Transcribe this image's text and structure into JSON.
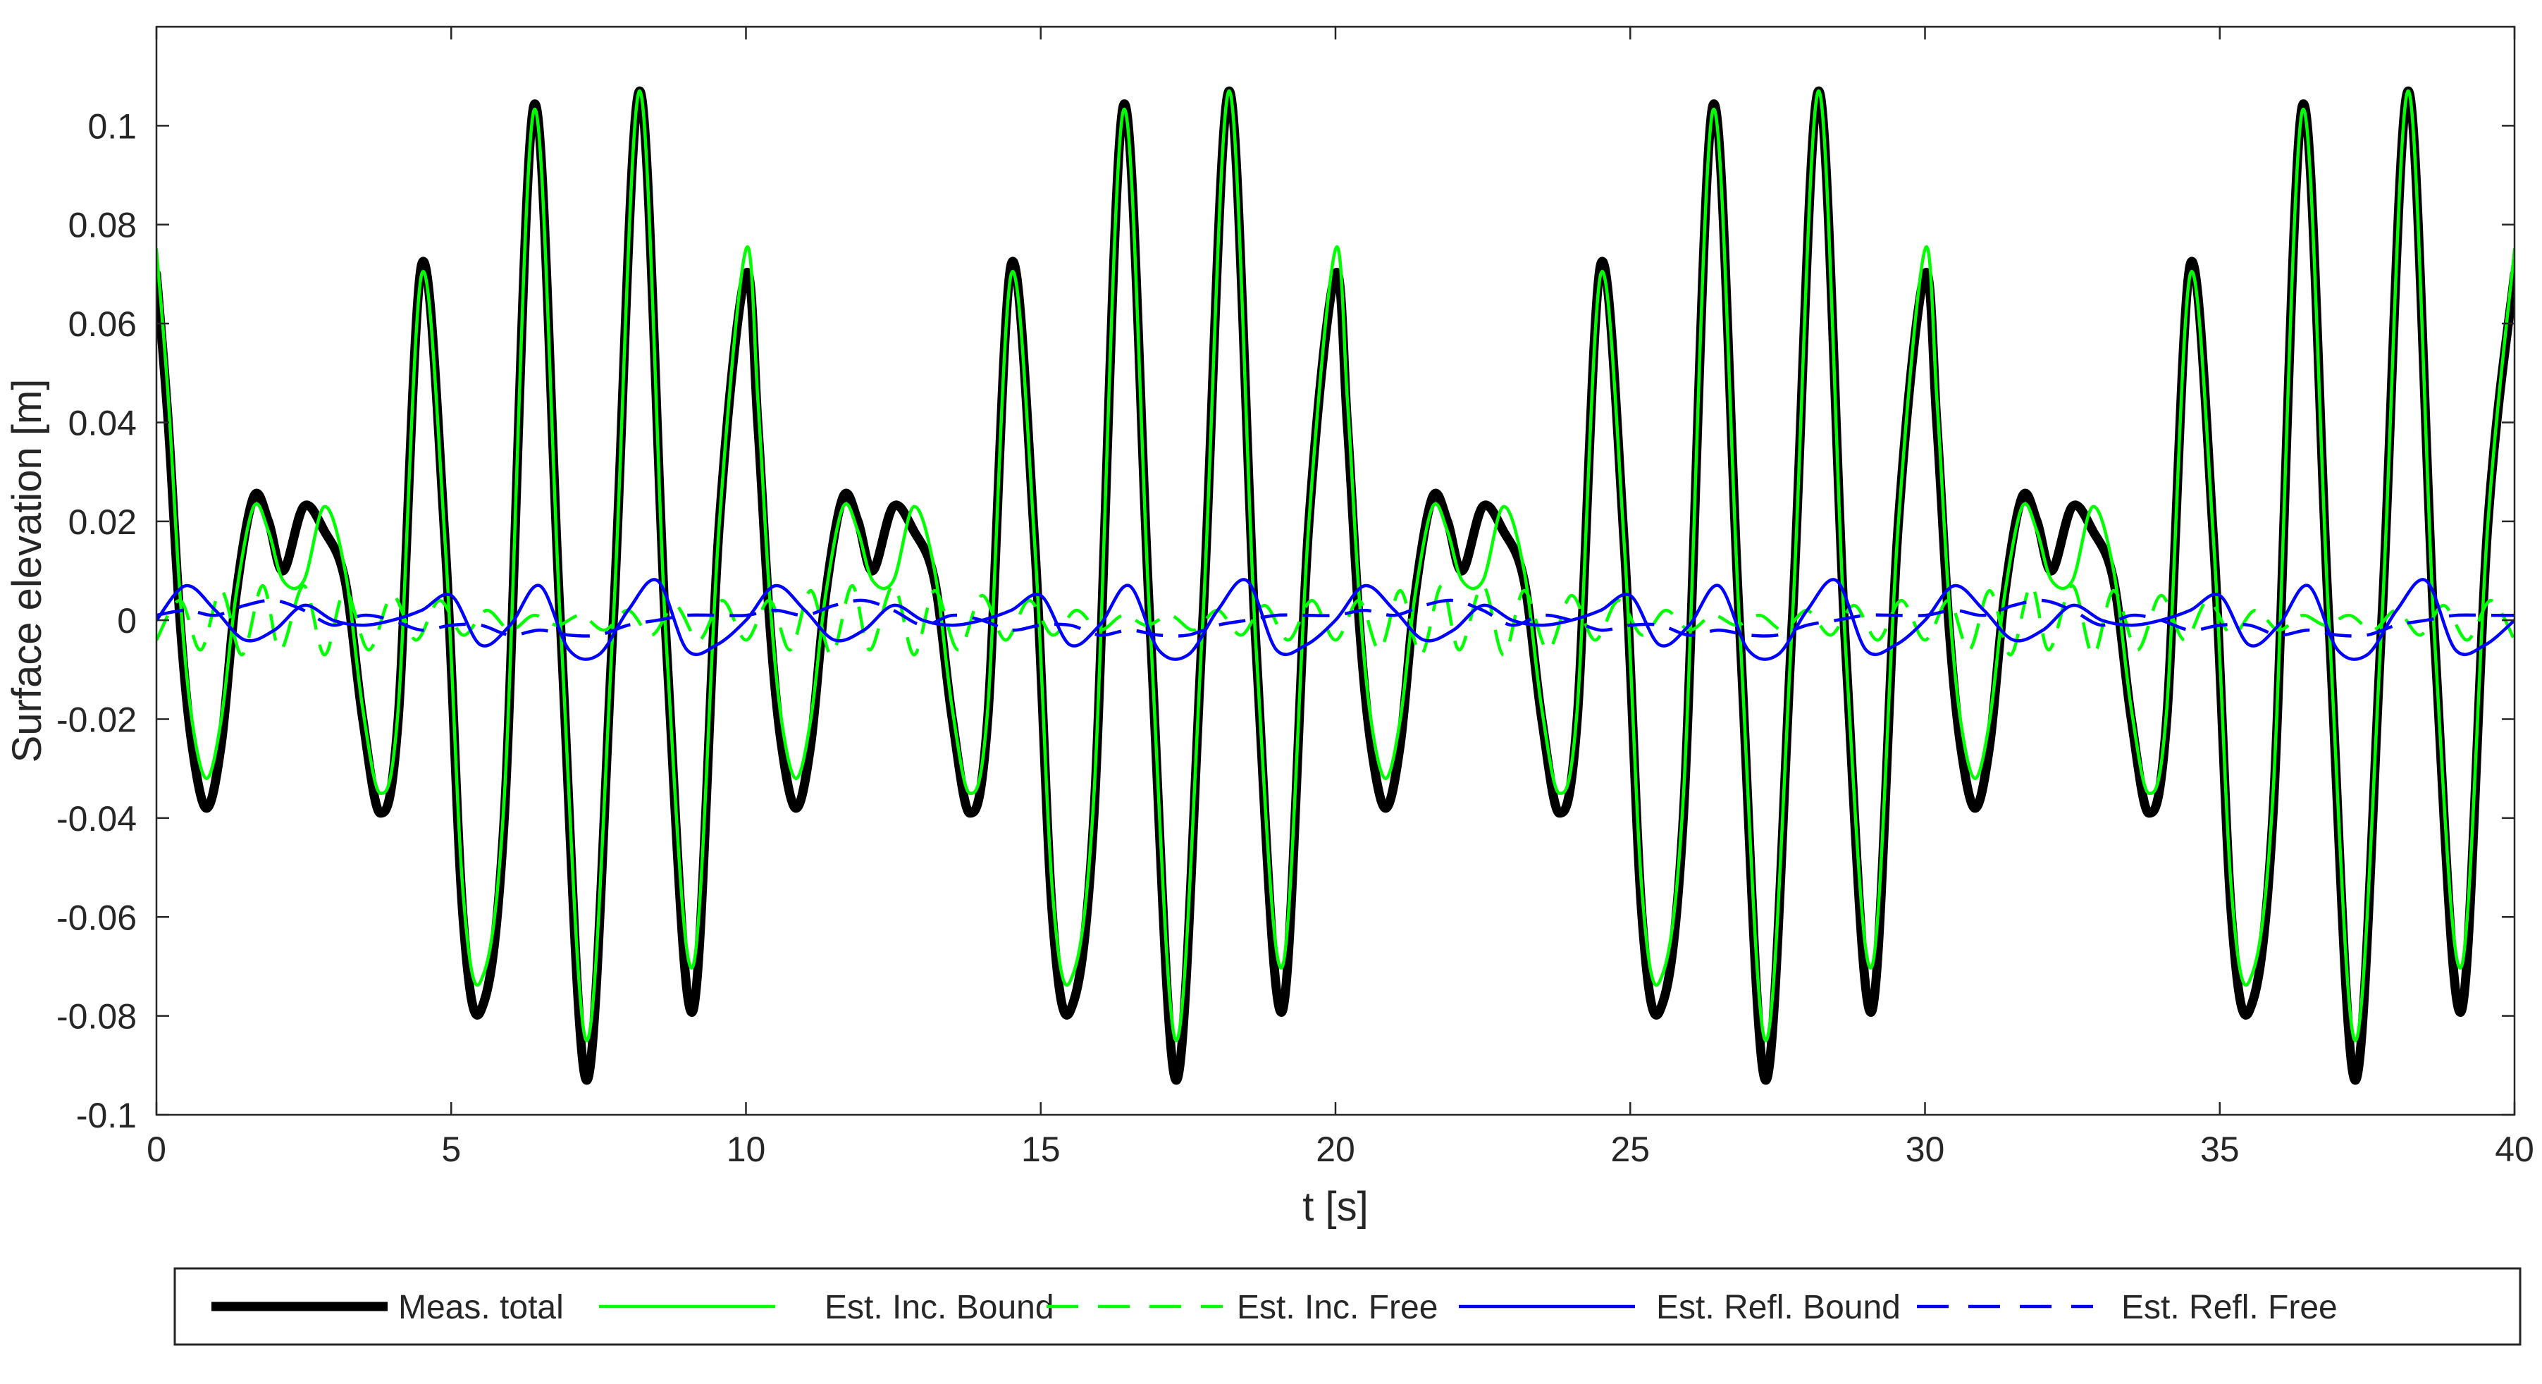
{
  "chart_data": {
    "type": "line",
    "title": "",
    "xlabel": "t [s]",
    "ylabel": "Surface elevation [m]",
    "xlim": [
      0,
      40
    ],
    "ylim": [
      -0.1,
      0.12
    ],
    "xticks": [
      0,
      5,
      10,
      15,
      20,
      25,
      30,
      35,
      40
    ],
    "xtick_labels": [
      "0",
      "5",
      "10",
      "15",
      "20",
      "25",
      "30",
      "35",
      "40"
    ],
    "yticks": [
      -0.1,
      -0.08,
      -0.06,
      -0.04,
      -0.02,
      0,
      0.02,
      0.04,
      0.06,
      0.08,
      0.1
    ],
    "ytick_labels": [
      "-0.1",
      "-0.08",
      "-0.06",
      "-0.04",
      "-0.02",
      "0",
      "0.02",
      "0.04",
      "0.06",
      "0.08",
      "0.1"
    ],
    "grid": false,
    "legend_position": "bottom-outside",
    "period": 10,
    "series": [
      {
        "name": "Meas. total",
        "color": "#000000",
        "style": "solid-thick",
        "x": [
          0,
          0.2,
          0.4,
          0.6,
          0.85,
          1.1,
          1.35,
          1.65,
          1.9,
          2.15,
          2.5,
          2.85,
          3.2,
          3.5,
          3.8,
          4.1,
          4.5,
          4.9,
          5.2,
          5.5,
          5.9,
          6.4,
          6.85,
          7.3,
          7.75,
          8.2,
          8.65,
          9.1,
          9.55,
          10
        ],
        "y": [
          0.07,
          0.04,
          0.0,
          -0.025,
          -0.038,
          -0.025,
          0.005,
          0.025,
          0.02,
          0.01,
          0.023,
          0.018,
          0.008,
          -0.02,
          -0.039,
          -0.02,
          0.072,
          0.015,
          -0.06,
          -0.079,
          -0.04,
          0.104,
          0.0,
          -0.093,
          0.0,
          0.107,
          -0.005,
          -0.079,
          0.02,
          0.07
        ]
      },
      {
        "name": "Est. Inc. Bound",
        "color": "#00ff00",
        "style": "solid",
        "x": [
          0,
          0.2,
          0.4,
          0.6,
          0.85,
          1.1,
          1.35,
          1.65,
          1.9,
          2.15,
          2.5,
          2.85,
          3.2,
          3.5,
          3.8,
          4.1,
          4.5,
          4.9,
          5.2,
          5.5,
          5.9,
          6.4,
          6.85,
          7.3,
          7.75,
          8.2,
          8.65,
          9.1,
          9.55,
          10
        ],
        "y": [
          0.075,
          0.045,
          0.005,
          -0.02,
          -0.032,
          -0.02,
          0.005,
          0.023,
          0.018,
          0.008,
          0.008,
          0.023,
          0.01,
          -0.018,
          -0.035,
          -0.018,
          0.07,
          0.015,
          -0.055,
          -0.073,
          -0.036,
          0.103,
          0.0,
          -0.085,
          0.0,
          0.107,
          -0.005,
          -0.07,
          0.02,
          0.075
        ]
      },
      {
        "name": "Est. Inc. Free",
        "color": "#00ff00",
        "style": "dashed",
        "x": [
          0,
          0.4,
          0.75,
          1.1,
          1.45,
          1.8,
          2.1,
          2.5,
          2.85,
          3.2,
          3.6,
          4.0,
          4.4,
          4.8,
          5.2,
          5.6,
          6.0,
          6.4,
          6.8,
          7.2,
          7.6,
          8.0,
          8.4,
          8.8,
          9.2,
          9.6,
          10
        ],
        "y": [
          -0.004,
          0.004,
          -0.006,
          0.006,
          -0.007,
          0.007,
          -0.006,
          0.007,
          -0.007,
          0.006,
          -0.006,
          0.005,
          -0.004,
          0.004,
          -0.003,
          0.002,
          -0.002,
          0.001,
          -0.001,
          0.001,
          -0.002,
          0.002,
          -0.003,
          0.003,
          -0.004,
          0.004,
          -0.004
        ]
      },
      {
        "name": "Est. Refl. Bound",
        "color": "#0000ff",
        "style": "solid",
        "x": [
          0,
          0.5,
          1.0,
          1.5,
          2.0,
          2.5,
          3.0,
          3.5,
          4.0,
          4.5,
          5.0,
          5.5,
          6.0,
          6.5,
          7.0,
          7.5,
          8.0,
          8.5,
          9.0,
          9.5,
          10
        ],
        "y": [
          0.0,
          0.007,
          0.002,
          -0.004,
          -0.002,
          0.003,
          0.0,
          -0.001,
          0.0,
          0.002,
          0.005,
          -0.005,
          -0.001,
          0.007,
          -0.006,
          -0.007,
          0.002,
          0.008,
          -0.006,
          -0.005,
          0.0
        ]
      },
      {
        "name": "Est. Refl. Free",
        "color": "#0000ff",
        "style": "dashed",
        "x": [
          0,
          0.5,
          1.0,
          1.5,
          2.0,
          2.5,
          3.0,
          3.5,
          4.0,
          4.5,
          5.0,
          5.5,
          6.0,
          6.5,
          7.0,
          7.5,
          8.0,
          8.5,
          9.0,
          9.5,
          10
        ],
        "y": [
          0.001,
          0.002,
          0.001,
          0.003,
          0.004,
          0.002,
          -0.001,
          0.001,
          0.0,
          -0.002,
          -0.001,
          -0.001,
          -0.003,
          -0.002,
          -0.003,
          -0.003,
          -0.001,
          0.0,
          0.001,
          0.001,
          0.001
        ]
      }
    ]
  }
}
